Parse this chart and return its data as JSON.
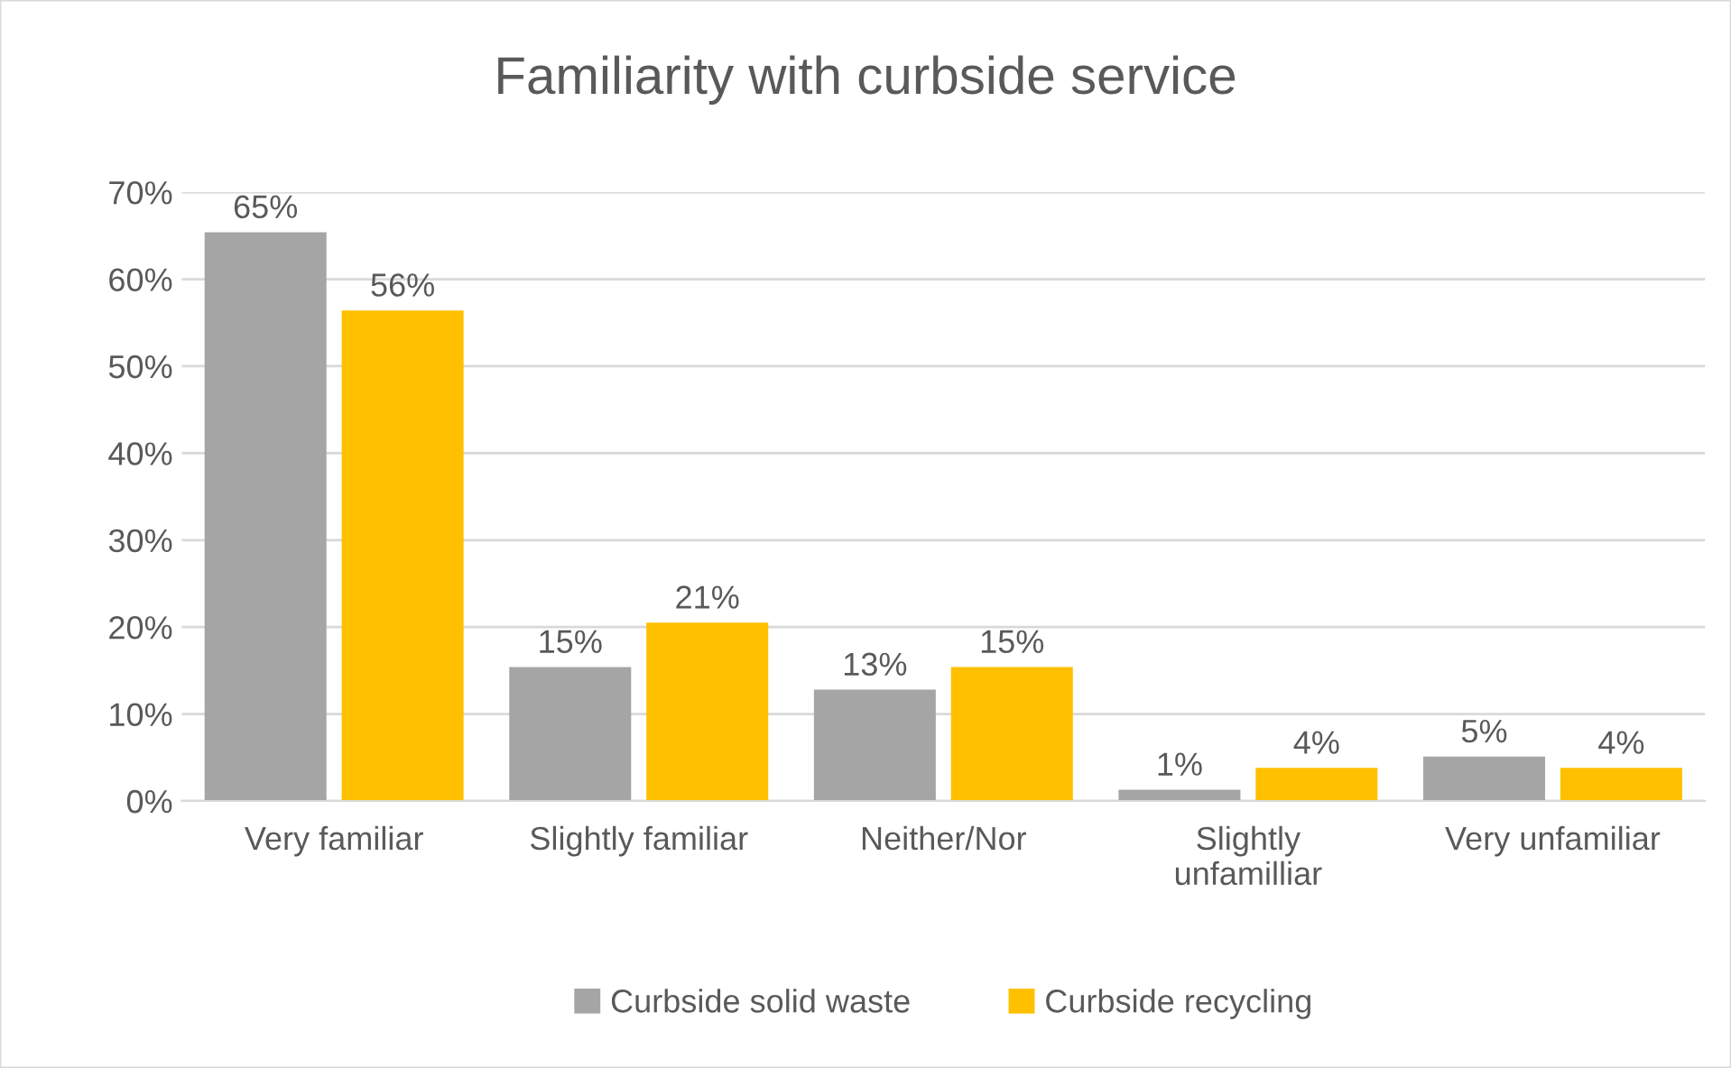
{
  "chart_data": {
    "type": "bar",
    "title": "Familiarity with curbside service",
    "categories": [
      "Very familiar",
      "Slightly familiar",
      "Neither/Nor",
      "Slightly\nunfamilliar",
      "Very unfamiliar"
    ],
    "series": [
      {
        "name": "Curbside solid waste",
        "color": "#a5a5a5",
        "values": [
          65.4,
          15.4,
          12.8,
          1.3,
          5.1
        ],
        "value_labels": [
          "65%",
          "15%",
          "13%",
          "1%",
          "5%"
        ]
      },
      {
        "name": "Curbside recycling",
        "color": "#ffc000",
        "values": [
          56.4,
          20.5,
          15.4,
          3.8,
          3.8
        ],
        "value_labels": [
          "56%",
          "21%",
          "15%",
          "4%",
          "4%"
        ]
      }
    ],
    "ylim": [
      0,
      70
    ],
    "yticks": [
      {
        "value": 0,
        "label": "0%"
      },
      {
        "value": 10,
        "label": "10%"
      },
      {
        "value": 20,
        "label": "20%"
      },
      {
        "value": 30,
        "label": "30%"
      },
      {
        "value": 40,
        "label": "40%"
      },
      {
        "value": 50,
        "label": "50%"
      },
      {
        "value": 60,
        "label": "60%"
      },
      {
        "value": 70,
        "label": "70%"
      }
    ],
    "grid": "y",
    "legend": "bottom"
  }
}
